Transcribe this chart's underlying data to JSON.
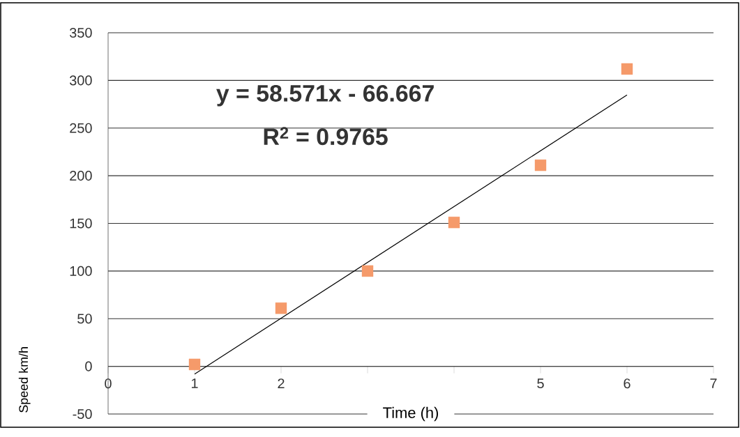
{
  "chart_data": {
    "type": "scatter",
    "xlabel": "Time (h)",
    "ylabel": "Speed km/h",
    "annotations": [
      "y = 58.571x - 66.667",
      "R$^{2}$ = 0.9765"
    ],
    "x": [
      1,
      2,
      3,
      4,
      5,
      6
    ],
    "series": [
      {
        "color": "#f59a6a",
        "marker": "square",
        "values": [
          2,
          61,
          100,
          151,
          211,
          312
        ]
      },
      {
        "type": "line",
        "color": "#000000",
        "marker": "none",
        "x": [
          1,
          6
        ],
        "values": [
          -8.1,
          284.8
        ]
      }
    ],
    "xlim": [
      0,
      7
    ],
    "ylim": [
      -50,
      350
    ],
    "xticks": [
      0,
      1,
      2,
      {
        "value": 3,
        "label": null
      },
      {
        "value": 4,
        "label": null
      },
      5,
      6,
      7
    ],
    "yticks": [
      -50,
      0,
      50,
      100,
      150,
      200,
      250,
      300,
      350
    ],
    "grid": "y"
  }
}
